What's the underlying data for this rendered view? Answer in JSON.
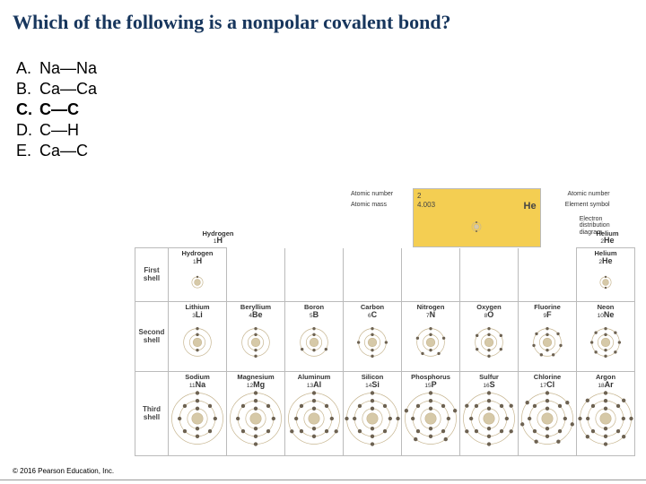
{
  "question": "Which of the following is a nonpolar covalent bond?",
  "answers": [
    {
      "letter": "A.",
      "text": "Na—Na",
      "bold": false
    },
    {
      "letter": "B.",
      "text": "Ca—Ca",
      "bold": false
    },
    {
      "letter": "C.",
      "text": "C—C",
      "bold": true
    },
    {
      "letter": "D.",
      "text": "C—H",
      "bold": false
    },
    {
      "letter": "E.",
      "text": "Ca—C",
      "bold": false
    }
  ],
  "copyright": "© 2016 Pearson Education, Inc.",
  "ptable": {
    "header_label": "Hydrogen",
    "header_sym": "H",
    "header_z": "1",
    "key": {
      "z": "2",
      "mass": "4.003",
      "sym": "He",
      "z_label": "Atomic number",
      "mass_label": "Atomic mass",
      "sym_label": "Element symbol",
      "diag_label1": "Electron",
      "diag_label2": "distribution",
      "diag_label3": "diagram"
    },
    "shell_labels": [
      "First\nshell",
      "Second\nshell",
      "Third\nshell"
    ],
    "rows": [
      [
        {
          "name": "Hydrogen",
          "sym": "H",
          "z": "1",
          "shells": [
            1
          ],
          "show": true
        },
        {
          "show": false
        },
        {
          "show": false
        },
        {
          "show": false
        },
        {
          "show": false
        },
        {
          "show": false
        },
        {
          "show": false
        },
        {
          "name": "Helium",
          "sym": "He",
          "z": "2",
          "shells": [
            2
          ],
          "show": true
        }
      ],
      [
        {
          "name": "Lithium",
          "sym": "Li",
          "z": "3",
          "shells": [
            2,
            1
          ],
          "show": true
        },
        {
          "name": "Beryllium",
          "sym": "Be",
          "z": "4",
          "shells": [
            2,
            2
          ],
          "show": true
        },
        {
          "name": "Boron",
          "sym": "B",
          "z": "5",
          "shells": [
            2,
            3
          ],
          "show": true
        },
        {
          "name": "Carbon",
          "sym": "C",
          "z": "6",
          "shells": [
            2,
            4
          ],
          "show": true
        },
        {
          "name": "Nitrogen",
          "sym": "N",
          "z": "7",
          "shells": [
            2,
            5
          ],
          "show": true
        },
        {
          "name": "Oxygen",
          "sym": "O",
          "z": "8",
          "shells": [
            2,
            6
          ],
          "show": true
        },
        {
          "name": "Fluorine",
          "sym": "F",
          "z": "9",
          "shells": [
            2,
            7
          ],
          "show": true
        },
        {
          "name": "Neon",
          "sym": "Ne",
          "z": "10",
          "shells": [
            2,
            8
          ],
          "show": true
        }
      ],
      [
        {
          "name": "Sodium",
          "sym": "Na",
          "z": "11",
          "shells": [
            2,
            8,
            1
          ],
          "show": true
        },
        {
          "name": "Magnesium",
          "sym": "Mg",
          "z": "12",
          "shells": [
            2,
            8,
            2
          ],
          "show": true
        },
        {
          "name": "Aluminum",
          "sym": "Al",
          "z": "13",
          "shells": [
            2,
            8,
            3
          ],
          "show": true
        },
        {
          "name": "Silicon",
          "sym": "Si",
          "z": "14",
          "shells": [
            2,
            8,
            4
          ],
          "show": true
        },
        {
          "name": "Phosphorus",
          "sym": "P",
          "z": "15",
          "shells": [
            2,
            8,
            5
          ],
          "show": true
        },
        {
          "name": "Sulfur",
          "sym": "S",
          "z": "16",
          "shells": [
            2,
            8,
            6
          ],
          "show": true
        },
        {
          "name": "Chlorine",
          "sym": "Cl",
          "z": "17",
          "shells": [
            2,
            8,
            7
          ],
          "show": true
        },
        {
          "name": "Argon",
          "sym": "Ar",
          "z": "18",
          "shells": [
            2,
            8,
            8
          ],
          "show": true
        }
      ]
    ],
    "colors": {
      "shell_stroke": "#c7b691",
      "electron_fill": "#6d6252",
      "nucleus_fill": "#d6c9a8",
      "key_bg": "#f4ce52"
    }
  }
}
